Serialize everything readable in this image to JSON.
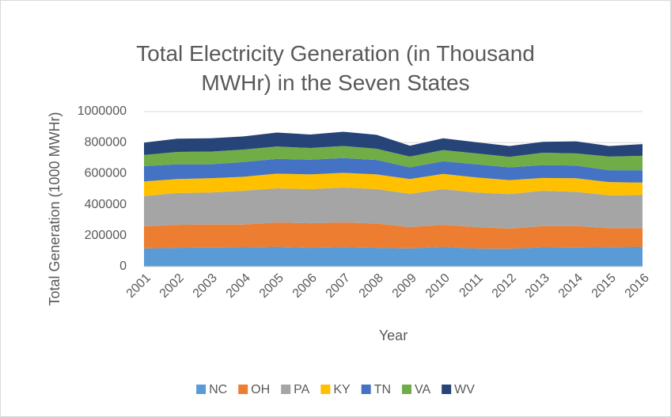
{
  "chart_data": {
    "type": "stacked-area",
    "title": "Total Electricity Generation (in Thousand MWHr) in the Seven States",
    "x_label": "Year",
    "y_label": "Total Generation (1000 MWHr)",
    "x": [
      2001,
      2002,
      2003,
      2004,
      2005,
      2006,
      2007,
      2008,
      2009,
      2010,
      2011,
      2012,
      2013,
      2014,
      2015,
      2016
    ],
    "ylim": [
      0,
      1000000
    ],
    "yticks": [
      0,
      200000,
      400000,
      600000,
      800000,
      1000000
    ],
    "grid": true,
    "legend": "bottom",
    "series": [
      {
        "name": "NC",
        "color": "#5b9bd5",
        "values": [
          118000,
          122000,
          124000,
          125000,
          128000,
          122000,
          126000,
          122000,
          118000,
          128000,
          117000,
          116000,
          125000,
          124000,
          126000,
          128000
        ]
      },
      {
        "name": "OH",
        "color": "#ed7d31",
        "values": [
          142000,
          148000,
          148000,
          147000,
          157000,
          158000,
          159000,
          156000,
          137000,
          142000,
          138000,
          129000,
          137000,
          138000,
          122000,
          120000
        ]
      },
      {
        "name": "PA",
        "color": "#a5a5a5",
        "values": [
          195000,
          205000,
          206000,
          218000,
          220000,
          220000,
          225000,
          222000,
          215000,
          230000,
          223000,
          223000,
          228000,
          220000,
          212000,
          214000
        ]
      },
      {
        "name": "KY",
        "color": "#ffc000",
        "values": [
          95000,
          90000,
          92000,
          90000,
          95000,
          95000,
          95000,
          95000,
          95000,
          98000,
          97000,
          90000,
          82000,
          88000,
          85000,
          80000
        ]
      },
      {
        "name": "TN",
        "color": "#4472c4",
        "values": [
          98000,
          95000,
          90000,
          95000,
          95000,
          95000,
          95000,
          93000,
          75000,
          82000,
          85000,
          82000,
          83000,
          82000,
          77000,
          80000
        ]
      },
      {
        "name": "VA",
        "color": "#70ad47",
        "values": [
          72000,
          80000,
          82000,
          80000,
          80000,
          75000,
          78000,
          72000,
          70000,
          72000,
          70000,
          68000,
          80000,
          78000,
          88000,
          93000
        ]
      },
      {
        "name": "WV",
        "color": "#264478",
        "values": [
          80000,
          85000,
          86000,
          85000,
          90000,
          87000,
          92000,
          90000,
          70000,
          76000,
          72000,
          70000,
          70000,
          78000,
          68000,
          75000
        ]
      }
    ]
  }
}
